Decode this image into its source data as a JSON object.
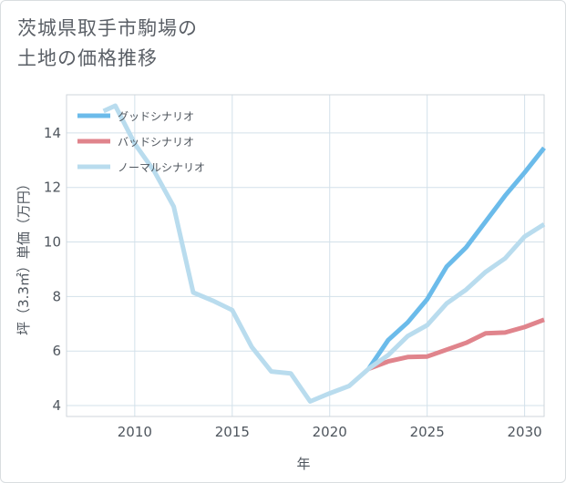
{
  "title": "茨城県取手市駒場の\n土地の価格推移",
  "chart_data": {
    "type": "line",
    "xlabel": "年",
    "ylabel": "坪（3.3㎡）単価（万円）",
    "xlim": [
      2006.5,
      2031
    ],
    "ylim": [
      3.6,
      15.4
    ],
    "x_ticks": [
      2010,
      2015,
      2020,
      2025,
      2030
    ],
    "y_ticks": [
      4,
      6,
      8,
      10,
      12,
      14
    ],
    "grid": true,
    "legend_position": "top-left",
    "series": [
      {
        "name": "グッドシナリオ",
        "color": "#6bbbea",
        "x": [
          2022,
          2023,
          2024,
          2025,
          2026,
          2027,
          2028,
          2029,
          2030,
          2031
        ],
        "y": [
          5.35,
          6.4,
          7.05,
          7.9,
          9.1,
          9.8,
          10.75,
          11.7,
          12.55,
          13.45
        ]
      },
      {
        "name": "バッドシナリオ",
        "color": "#e0848c",
        "x": [
          2022,
          2023,
          2024,
          2025,
          2026,
          2027,
          2028,
          2029,
          2030,
          2031
        ],
        "y": [
          5.35,
          5.62,
          5.78,
          5.8,
          6.05,
          6.3,
          6.65,
          6.68,
          6.88,
          7.15
        ]
      },
      {
        "name": "ノーマルシナリオ",
        "color": "#b9dcee",
        "x": [
          2008.4,
          2009,
          2010,
          2011,
          2012,
          2013,
          2014,
          2015,
          2016,
          2017,
          2018,
          2019,
          2020,
          2021,
          2022,
          2023,
          2024,
          2025,
          2026,
          2027,
          2028,
          2029,
          2030,
          2031
        ],
        "y": [
          14.8,
          15.0,
          13.6,
          12.6,
          11.3,
          8.15,
          7.85,
          7.5,
          6.15,
          5.25,
          5.18,
          4.15,
          4.45,
          4.72,
          5.35,
          5.85,
          6.55,
          6.95,
          7.75,
          8.25,
          8.9,
          9.4,
          10.2,
          10.65
        ]
      }
    ]
  }
}
